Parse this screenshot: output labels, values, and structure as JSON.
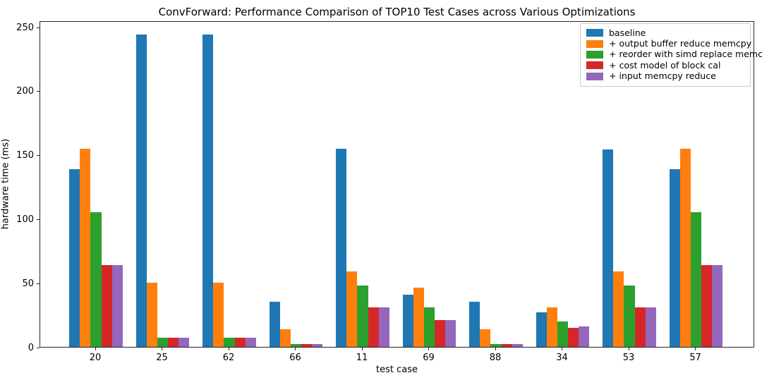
{
  "chart_data": {
    "type": "bar",
    "title": "ConvForward: Performance Comparison of TOP10 Test Cases across Various Optimizations",
    "xlabel": "test case",
    "ylabel": "hardware time (ms)",
    "categories": [
      "20",
      "25",
      "62",
      "66",
      "11",
      "69",
      "88",
      "34",
      "53",
      "57"
    ],
    "series": [
      {
        "name": "baseline",
        "color": "#1f77b4",
        "values": [
          139,
          244,
          244,
          35,
          155,
          41,
          35,
          27,
          154,
          139
        ]
      },
      {
        "name": "+ output buffer reduce memcpy",
        "color": "#ff7f0e",
        "values": [
          155,
          50,
          50,
          14,
          59,
          46,
          14,
          31,
          59,
          155
        ]
      },
      {
        "name": "+ reorder with simd replace memcpy",
        "color": "#2ca02c",
        "values": [
          105,
          7,
          7,
          2,
          48,
          31,
          2,
          20,
          48,
          105
        ]
      },
      {
        "name": "+ cost model of block cal",
        "color": "#d62728",
        "values": [
          64,
          7,
          7,
          2,
          31,
          21,
          2,
          15,
          31,
          64
        ]
      },
      {
        "name": "+ input memcpy reduce",
        "color": "#9467bd",
        "values": [
          64,
          7,
          7,
          2,
          31,
          21,
          2,
          16,
          31,
          64
        ]
      }
    ],
    "yticks": [
      0,
      50,
      100,
      150,
      200,
      250
    ],
    "ylim": [
      0,
      255
    ],
    "grid": false,
    "legend_position": "upper right",
    "axis_color": "#262626",
    "background_color": "#ffffff"
  }
}
